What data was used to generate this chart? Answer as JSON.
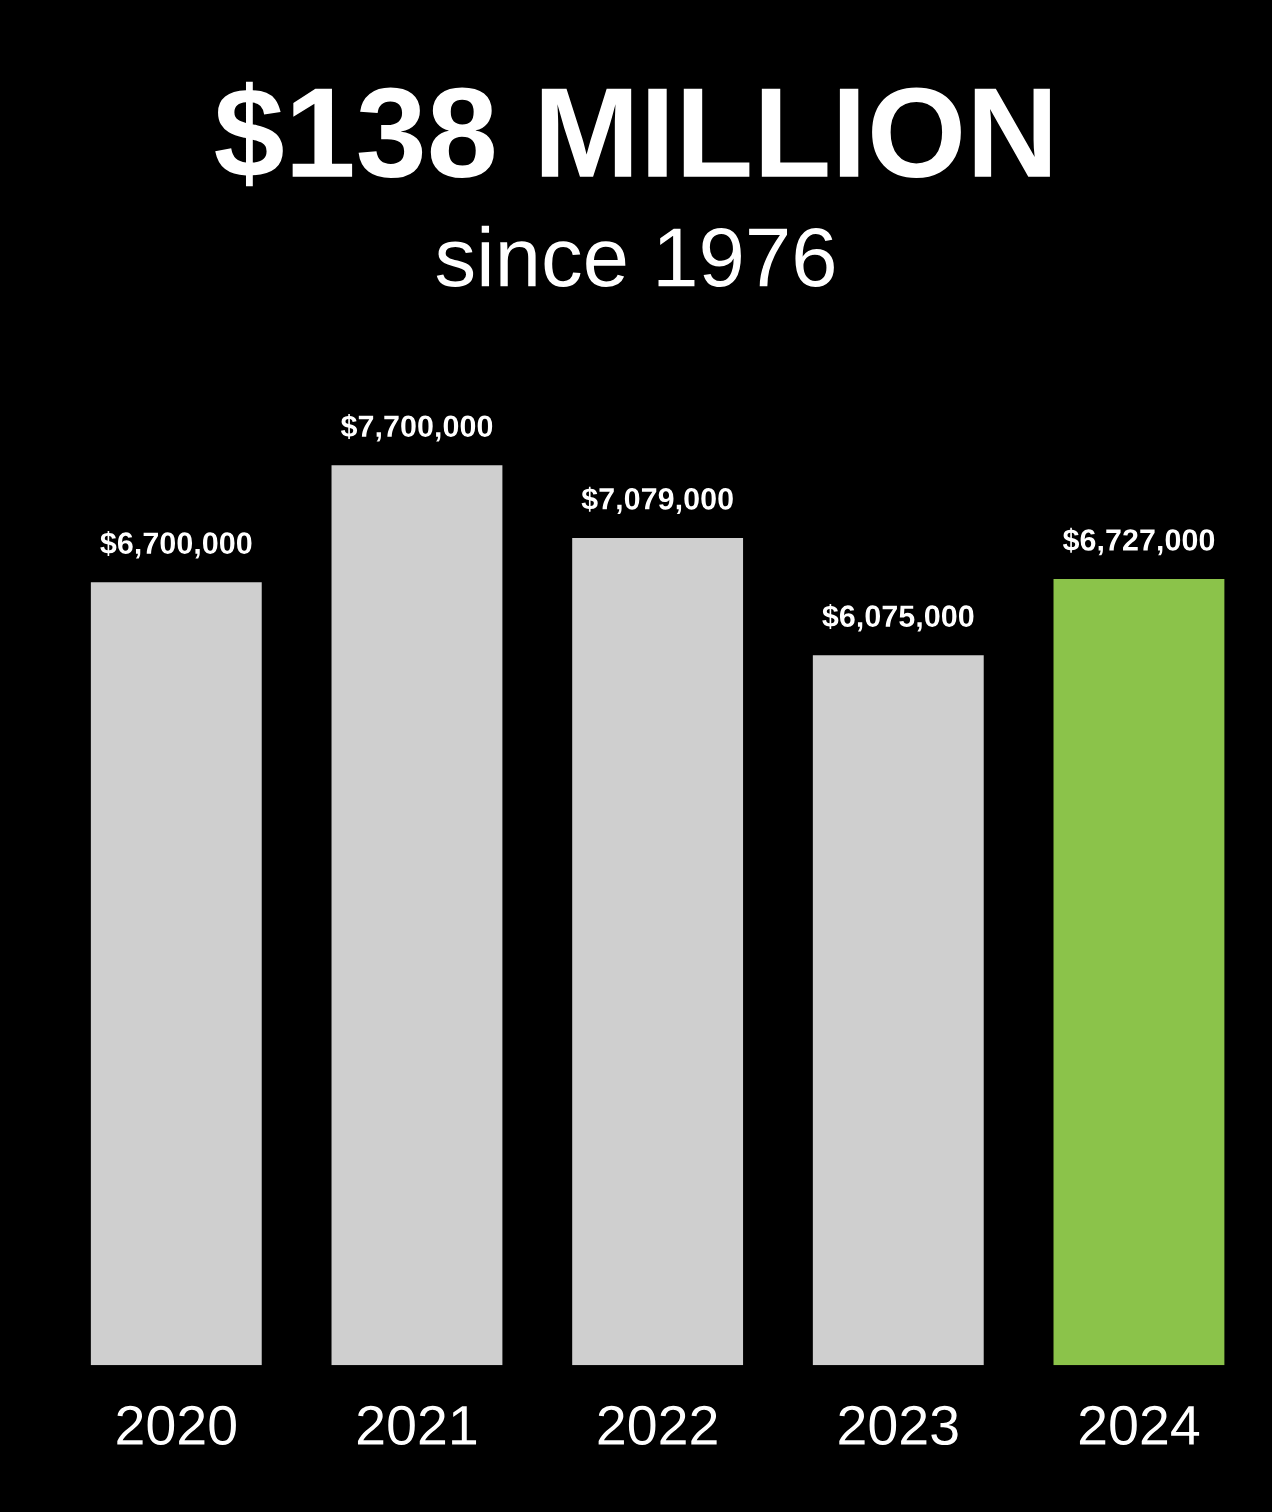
{
  "chart_data": {
    "type": "bar",
    "title": "$138 MILLION",
    "subtitle": "since 1976",
    "categories": [
      "2020",
      "2021",
      "2022",
      "2023",
      "2024"
    ],
    "values": [
      6700000,
      7700000,
      7079000,
      6075000,
      6727000
    ],
    "colors": [
      "#cfcfcf",
      "#cfcfcf",
      "#cfcfcf",
      "#cfcfcf",
      "#8bc34a"
    ],
    "value_labels": [
      "$6,700,000",
      "$7,700,000",
      "$7,079,000",
      "$6,075,000",
      "$6,727,000"
    ],
    "tick_labels": "x",
    "grid": false,
    "legend": false
  }
}
